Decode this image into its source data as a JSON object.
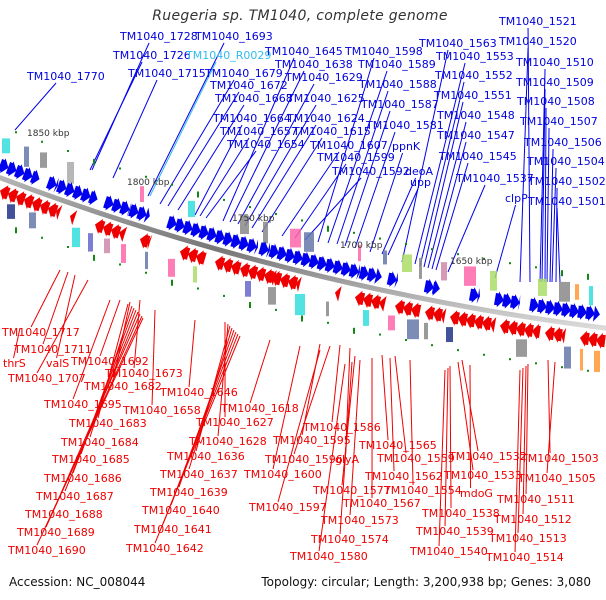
{
  "title": "Ruegeria sp. TM1040, complete genome",
  "footer": {
    "accession": "Accession: NC_008044",
    "summary": "Topology: circular; Length: 3,200,938 bp; Genes: 3,080"
  },
  "colors": {
    "forward_strand": "#0000ee",
    "reverse_strand": "#ee0000",
    "rna_label": "#33bbee",
    "backbone": "#888888",
    "marker": "#118811"
  },
  "kbp_marks": [
    "1850 kbp",
    "1800 kbp",
    "1750 kbp",
    "1700 kbp",
    "1650 kbp"
  ],
  "forward_labels": [
    "TM1040_1770",
    "TM1040_1728",
    "TM1040_1726",
    "TM1040_1715",
    "TM1040_1693",
    "TM1040_R0029",
    "TM1040_1679",
    "TM1040_1672",
    "TM1040_1668",
    "TM1040_1664",
    "TM1040_1657",
    "TM1040_1654",
    "TM1040_1645",
    "TM1040_1638",
    "TM1040_1629",
    "TM1040_1625",
    "TM1040_1624",
    "TM1040_1615",
    "TM1040_1607",
    "TM1040_1599",
    "TM1040_1592",
    "TM1040_1598",
    "TM1040_1589",
    "TM1040_1588",
    "TM1040_1587",
    "TM1040_1581",
    "ppnK",
    "deoA",
    "upp",
    "TM1040_1563",
    "TM1040_1553",
    "TM1040_1552",
    "TM1040_1551",
    "TM1040_1548",
    "TM1040_1547",
    "TM1040_1545",
    "TM1040_1537",
    "clpP",
    "TM1040_1521",
    "TM1040_1520",
    "TM1040_1510",
    "TM1040_1509",
    "TM1040_1508",
    "TM1040_1507",
    "TM1040_1506",
    "TM1040_1504",
    "TM1040_1502",
    "TM1040_1501"
  ],
  "reverse_labels": [
    "TM1040_1717",
    "TM1040_1711",
    "thrS",
    "valS",
    "TM1040_1707",
    "TM1040_1692",
    "TM1040_1673",
    "TM1040_1682",
    "TM1040_1695",
    "TM1040_1658",
    "TM1040_1683",
    "TM1040_1684",
    "TM1040_1685",
    "TM1040_1686",
    "TM1040_1687",
    "TM1040_1688",
    "TM1040_1689",
    "TM1040_1690",
    "TM1040_1646",
    "TM1040_1627",
    "TM1040_1628",
    "TM1040_1636",
    "TM1040_1637",
    "TM1040_1639",
    "TM1040_1640",
    "TM1040_1641",
    "TM1040_1642",
    "TM1040_1618",
    "TM1040_1586",
    "TM1040_1595",
    "TM1040_1596",
    "glyA",
    "TM1040_1600",
    "TM1040_1597",
    "TM1040_1565",
    "TM1040_1559",
    "TM1040_1562",
    "TM1040_1577",
    "TM1040_1554",
    "TM1040_1567",
    "TM1040_1573",
    "TM1040_1574",
    "TM1040_1580",
    "TM1040_1532",
    "TM1040_1533",
    "mdoG",
    "TM1040_1538",
    "TM1040_1539",
    "TM1040_1540",
    "TM1040_1503",
    "TM1040_1505",
    "TM1040_1511",
    "TM1040_1512",
    "TM1040_1513",
    "TM1040_1514"
  ]
}
